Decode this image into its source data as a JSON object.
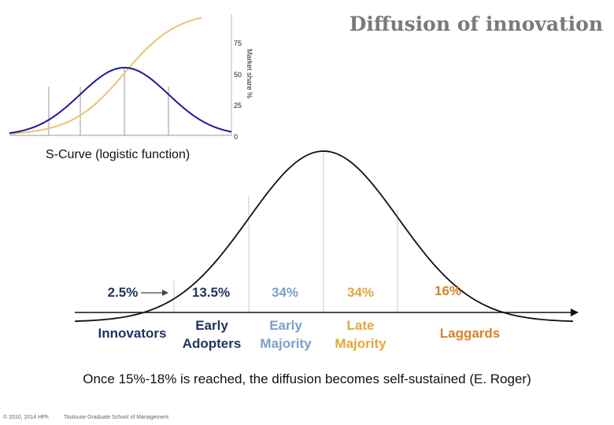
{
  "title": "Diffusion of innovation",
  "s_curve": {
    "caption": "S-Curve  (logistic function)",
    "ylabel": "Market share %",
    "yticks": [
      "75",
      "50",
      "25",
      "0"
    ],
    "colors": {
      "s_curve": "#e8c46e",
      "bell_curve": "#1c1a9e"
    }
  },
  "segments": [
    {
      "name": "innovators",
      "percent": "2.5%",
      "label_lines": [
        "Innovators"
      ],
      "color": "#1f3560"
    },
    {
      "name": "early-adopters",
      "percent": "13.5%",
      "label_lines": [
        "Early",
        "Adopters"
      ],
      "color": "#1f3560"
    },
    {
      "name": "early-majority",
      "percent": "34%",
      "label_lines": [
        "Early",
        "Majority"
      ],
      "color": "#7c9ec8"
    },
    {
      "name": "late-majority",
      "percent": "34%",
      "label_lines": [
        "Late",
        "Majority"
      ],
      "color": "#e0a83a"
    },
    {
      "name": "laggards",
      "percent": "16%",
      "label_lines": [
        "Laggards"
      ],
      "color": "#d88226"
    }
  ],
  "note": "Once 15%-18% is reached, the diffusion becomes self-sustained (E. Roger)",
  "footer": {
    "copyright": "© 2010, 2014 HPh",
    "school": "Toulouse Graduate School of Management"
  }
}
